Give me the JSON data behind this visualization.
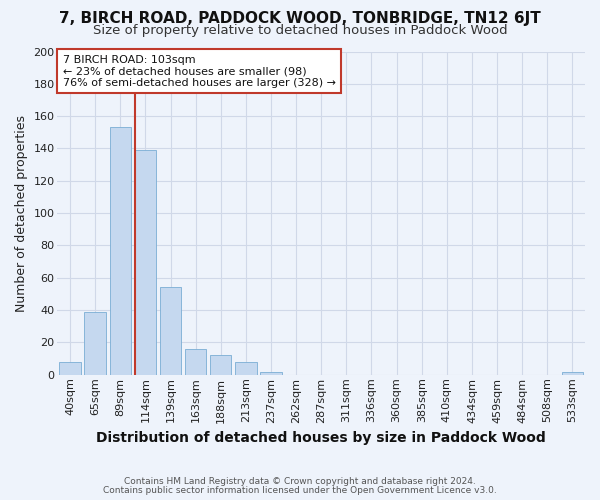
{
  "title": "7, BIRCH ROAD, PADDOCK WOOD, TONBRIDGE, TN12 6JT",
  "subtitle": "Size of property relative to detached houses in Paddock Wood",
  "xlabel": "Distribution of detached houses by size in Paddock Wood",
  "ylabel": "Number of detached properties",
  "footer_line1": "Contains HM Land Registry data © Crown copyright and database right 2024.",
  "footer_line2": "Contains public sector information licensed under the Open Government Licence v3.0.",
  "categories": [
    "40sqm",
    "65sqm",
    "89sqm",
    "114sqm",
    "139sqm",
    "163sqm",
    "188sqm",
    "213sqm",
    "237sqm",
    "262sqm",
    "287sqm",
    "311sqm",
    "336sqm",
    "360sqm",
    "385sqm",
    "410sqm",
    "434sqm",
    "459sqm",
    "484sqm",
    "508sqm",
    "533sqm"
  ],
  "values": [
    8,
    39,
    153,
    139,
    54,
    16,
    12,
    8,
    2,
    0,
    0,
    0,
    0,
    0,
    0,
    0,
    0,
    0,
    0,
    0,
    2
  ],
  "bar_color": "#c5d8ef",
  "bar_edge_color": "#7aadd4",
  "background_color": "#eef3fb",
  "grid_color": "#d0d8e8",
  "vline_x_index": 3,
  "vline_color": "#c0392b",
  "annotation_title": "7 BIRCH ROAD: 103sqm",
  "annotation_line1": "← 23% of detached houses are smaller (98)",
  "annotation_line2": "76% of semi-detached houses are larger (328) →",
  "annotation_box_color": "#c0392b",
  "ylim": [
    0,
    200
  ],
  "yticks": [
    0,
    20,
    40,
    60,
    80,
    100,
    120,
    140,
    160,
    180,
    200
  ],
  "title_fontsize": 11,
  "subtitle_fontsize": 9.5,
  "xlabel_fontsize": 10,
  "ylabel_fontsize": 9,
  "tick_fontsize": 8,
  "annotation_fontsize": 8
}
